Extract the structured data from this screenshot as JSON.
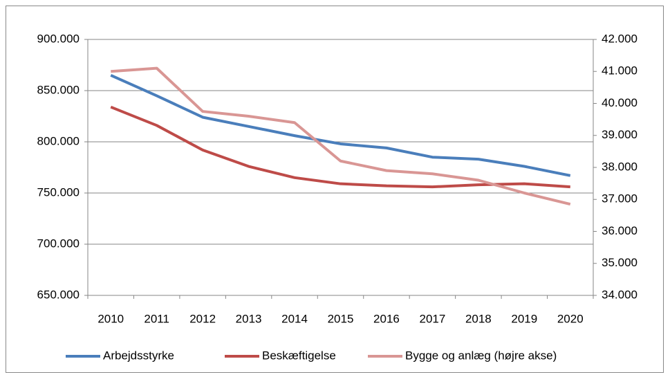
{
  "chart_data": {
    "type": "line",
    "categories": [
      "2010",
      "2011",
      "2012",
      "2013",
      "2014",
      "2015",
      "2016",
      "2017",
      "2018",
      "2019",
      "2020"
    ],
    "series": [
      {
        "name": "Arbejdsstyrke",
        "color": "#4a7ebb",
        "values": [
          865000,
          845000,
          824000,
          815000,
          806000,
          798000,
          794000,
          785000,
          783000,
          776000,
          767000
        ]
      },
      {
        "name": "Beskæftigelse",
        "color": "#be4b48",
        "values": [
          834000,
          816000,
          792000,
          776000,
          765000,
          759000,
          757000,
          756000,
          758000,
          759000,
          756000
        ]
      },
      {
        "name": "Bygge og anlæg (højre akse)",
        "color": "#d99694",
        "axis": "y2",
        "values": [
          41000,
          41100,
          39750,
          39600,
          39400,
          38200,
          37900,
          37800,
          37600,
          37200,
          36850
        ]
      }
    ],
    "ylim": [
      650000,
      900000
    ],
    "yticks": [
      {
        "value": 650000,
        "label": "650.000"
      },
      {
        "value": 700000,
        "label": "700.000"
      },
      {
        "value": 750000,
        "label": "750.000"
      },
      {
        "value": 800000,
        "label": "800.000"
      },
      {
        "value": 850000,
        "label": "850.000"
      },
      {
        "value": 900000,
        "label": "900.000"
      }
    ],
    "y2lim": [
      34000,
      42000
    ],
    "y2ticks": [
      {
        "value": 34000,
        "label": "34.000"
      },
      {
        "value": 35000,
        "label": "35.000"
      },
      {
        "value": 36000,
        "label": "36.000"
      },
      {
        "value": 37000,
        "label": "37.000"
      },
      {
        "value": 38000,
        "label": "38.000"
      },
      {
        "value": 39000,
        "label": "39.000"
      },
      {
        "value": 40000,
        "label": "40.000"
      },
      {
        "value": 41000,
        "label": "41.000"
      },
      {
        "value": 42000,
        "label": "42.000"
      }
    ],
    "grid": true,
    "legend": "bottom"
  }
}
